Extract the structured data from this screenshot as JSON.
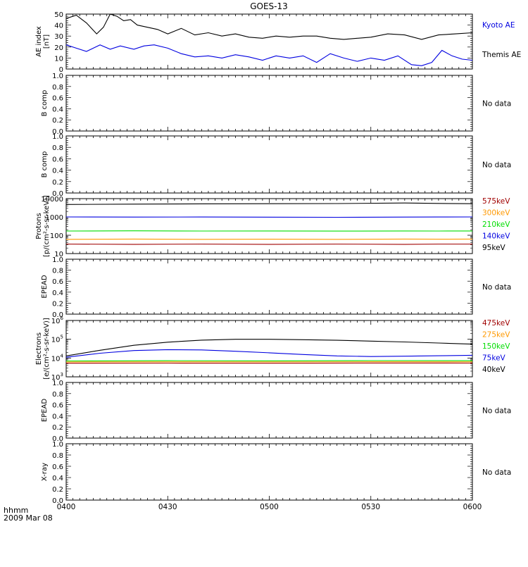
{
  "title": "GOES-13",
  "time_label": "hhmm",
  "date_label": "2009 Mar 08",
  "colors": {
    "black": "#000000",
    "blue": "#0000e0",
    "green": "#00dd00",
    "orange": "#ff9900",
    "red": "#a00000"
  },
  "chart_data": [
    {
      "type": "line",
      "ylabel": [
        "AE index",
        "[nT]"
      ],
      "ylim": [
        0,
        50
      ],
      "yticks": [
        0,
        10,
        20,
        30,
        40,
        50
      ],
      "xlim_minutes": [
        0,
        120
      ],
      "legend": [
        {
          "text": "Kyoto AE",
          "color": "#0000e0"
        },
        {
          "text": "Themis AE",
          "color": "#000000"
        }
      ],
      "series": [
        {
          "name": "Themis AE",
          "color": "#000000",
          "x": [
            0,
            3,
            6,
            9,
            11,
            13,
            15,
            17,
            19,
            21,
            24,
            27,
            30,
            34,
            38,
            42,
            46,
            50,
            54,
            58,
            62,
            66,
            70,
            74,
            78,
            82,
            86,
            90,
            95,
            100,
            105,
            110,
            115,
            120
          ],
          "y": [
            46,
            49,
            42,
            32,
            38,
            50,
            48,
            44,
            45,
            40,
            38,
            36,
            32,
            37,
            31,
            33,
            30,
            32,
            29,
            28,
            30,
            29,
            30,
            30,
            28,
            27,
            28,
            29,
            32,
            31,
            27,
            31,
            32,
            33
          ]
        },
        {
          "name": "Kyoto AE",
          "color": "#0000e0",
          "x": [
            0,
            3,
            6,
            10,
            13,
            16,
            20,
            23,
            26,
            30,
            34,
            38,
            42,
            46,
            50,
            54,
            58,
            62,
            66,
            70,
            74,
            78,
            82,
            86,
            90,
            94,
            98,
            102,
            105,
            108,
            111,
            114,
            117,
            120
          ],
          "y": [
            22,
            19,
            16,
            22,
            18,
            21,
            18,
            21,
            22,
            19,
            14,
            11,
            12,
            10,
            13,
            11,
            8,
            12,
            10,
            12,
            6,
            14,
            10,
            7,
            10,
            8,
            12,
            4,
            3,
            6,
            17,
            12,
            9,
            8
          ]
        }
      ]
    },
    {
      "type": "line",
      "ylabel": [
        "B comp"
      ],
      "ylim": [
        0,
        1
      ],
      "yticks": [
        "0.0",
        "0.2",
        "0.4",
        "0.6",
        "0.8",
        "1.0"
      ],
      "xlim_minutes": [
        0,
        120
      ],
      "nodata": "No data",
      "series": []
    },
    {
      "type": "line",
      "ylabel": [
        "B comp"
      ],
      "ylim": [
        0,
        1
      ],
      "yticks": [
        "0.0",
        "0.2",
        "0.4",
        "0.6",
        "0.8",
        "1.0"
      ],
      "xlim_minutes": [
        0,
        120
      ],
      "nodata": "No data",
      "series": []
    },
    {
      "type": "line",
      "yscale": "log",
      "ylabel": [
        "Protons",
        "[p/(cm²-s-sr-keV)]"
      ],
      "ylim": [
        10,
        10000
      ],
      "yticks": [
        "10",
        "100",
        "1000",
        "10000"
      ],
      "xlim_minutes": [
        0,
        120
      ],
      "legend": [
        {
          "text": "575keV",
          "color": "#a00000"
        },
        {
          "text": "300keV",
          "color": "#ff9900"
        },
        {
          "text": "210keV",
          "color": "#00dd00"
        },
        {
          "text": "140keV",
          "color": "#0000e0"
        },
        {
          "text": "95keV",
          "color": "#000000"
        }
      ],
      "series": [
        {
          "name": "95keV",
          "color": "#000000",
          "x": [
            0,
            20,
            40,
            60,
            80,
            100,
            110,
            120
          ],
          "y": [
            4800,
            5000,
            5200,
            5300,
            5400,
            5800,
            5500,
            5300
          ]
        },
        {
          "name": "140keV",
          "color": "#0000e0",
          "x": [
            0,
            20,
            40,
            60,
            80,
            100,
            110,
            120
          ],
          "y": [
            1000,
            980,
            990,
            970,
            960,
            980,
            990,
            1000
          ]
        },
        {
          "name": "210keV",
          "color": "#00dd00",
          "x": [
            0,
            20,
            40,
            60,
            80,
            100,
            110,
            120
          ],
          "y": [
            170,
            175,
            170,
            172,
            168,
            172,
            170,
            172
          ]
        },
        {
          "name": "300keV",
          "color": "#ff9900",
          "x": [
            0,
            20,
            40,
            60,
            80,
            100,
            110,
            120
          ],
          "y": [
            60,
            62,
            60,
            61,
            60,
            62,
            61,
            62
          ]
        },
        {
          "name": "575keV",
          "color": "#a00000",
          "x": [
            0,
            20,
            40,
            60,
            80,
            100,
            110,
            120
          ],
          "y": [
            33,
            32,
            33,
            32,
            33,
            32,
            33,
            33
          ]
        }
      ]
    },
    {
      "type": "line",
      "ylabel": [
        "EPEAD"
      ],
      "ylim": [
        0,
        1
      ],
      "yticks": [
        "0.0",
        "0.2",
        "0.4",
        "0.6",
        "0.8",
        "1.0"
      ],
      "xlim_minutes": [
        0,
        120
      ],
      "nodata": "No data",
      "series": []
    },
    {
      "type": "line",
      "yscale": "log",
      "ylabel": [
        "Electrons",
        "[e/(cm²-s-sr-keV)]"
      ],
      "ylim": [
        1000,
        1000000
      ],
      "yticks": [
        {
          "base": "10",
          "exp": "3"
        },
        {
          "base": "10",
          "exp": "4"
        },
        {
          "base": "10",
          "exp": "5"
        },
        {
          "base": "10",
          "exp": "6"
        }
      ],
      "xlim_minutes": [
        0,
        120
      ],
      "legend": [
        {
          "text": "475keV",
          "color": "#a00000"
        },
        {
          "text": "275keV",
          "color": "#ff9900"
        },
        {
          "text": "150keV",
          "color": "#00dd00"
        },
        {
          "text": "75keV",
          "color": "#0000e0"
        },
        {
          "text": "40keV",
          "color": "#000000"
        }
      ],
      "series": [
        {
          "name": "40keV",
          "color": "#000000",
          "x": [
            0,
            10,
            20,
            30,
            40,
            50,
            60,
            70,
            80,
            90,
            100,
            110,
            120
          ],
          "y": [
            13000,
            26000,
            48000,
            70000,
            90000,
            100000,
            100000,
            95000,
            88000,
            80000,
            72000,
            63000,
            55000
          ]
        },
        {
          "name": "75keV",
          "color": "#0000e0",
          "x": [
            0,
            10,
            20,
            30,
            40,
            50,
            60,
            70,
            80,
            90,
            100,
            110,
            120
          ],
          "y": [
            11000,
            18000,
            25000,
            28000,
            27000,
            23000,
            19000,
            15500,
            13000,
            12000,
            12500,
            13200,
            14000
          ]
        },
        {
          "name": "150keV",
          "color": "#00dd00",
          "x": [
            0,
            30,
            60,
            90,
            120
          ],
          "y": [
            7000,
            7200,
            7100,
            7300,
            7200
          ]
        },
        {
          "name": "275keV",
          "color": "#ff9900",
          "x": [
            0,
            30,
            60,
            90,
            120
          ],
          "y": [
            6200,
            6300,
            6250,
            6350,
            6300
          ]
        },
        {
          "name": "475keV",
          "color": "#a00000",
          "x": [
            0,
            30,
            60,
            90,
            120
          ],
          "y": [
            5300,
            5400,
            5300,
            5450,
            5400
          ]
        }
      ]
    },
    {
      "type": "line",
      "ylabel": [
        "EPEAD"
      ],
      "ylim": [
        0,
        1
      ],
      "yticks": [
        "0.0",
        "0.2",
        "0.4",
        "0.6",
        "0.8",
        "1.0"
      ],
      "xlim_minutes": [
        0,
        120
      ],
      "nodata": "No data",
      "series": []
    },
    {
      "type": "line",
      "ylabel": [
        "X-ray"
      ],
      "ylim": [
        0,
        1
      ],
      "yticks": [
        "0.0",
        "0.2",
        "0.4",
        "0.6",
        "0.8",
        "1.0"
      ],
      "xlim_minutes": [
        0,
        120
      ],
      "xticks": [
        {
          "label": "0400",
          "minute": 0
        },
        {
          "label": "0430",
          "minute": 30
        },
        {
          "label": "0500",
          "minute": 60
        },
        {
          "label": "0530",
          "minute": 90
        },
        {
          "label": "0600",
          "minute": 120
        }
      ],
      "nodata": "No data",
      "series": []
    }
  ]
}
